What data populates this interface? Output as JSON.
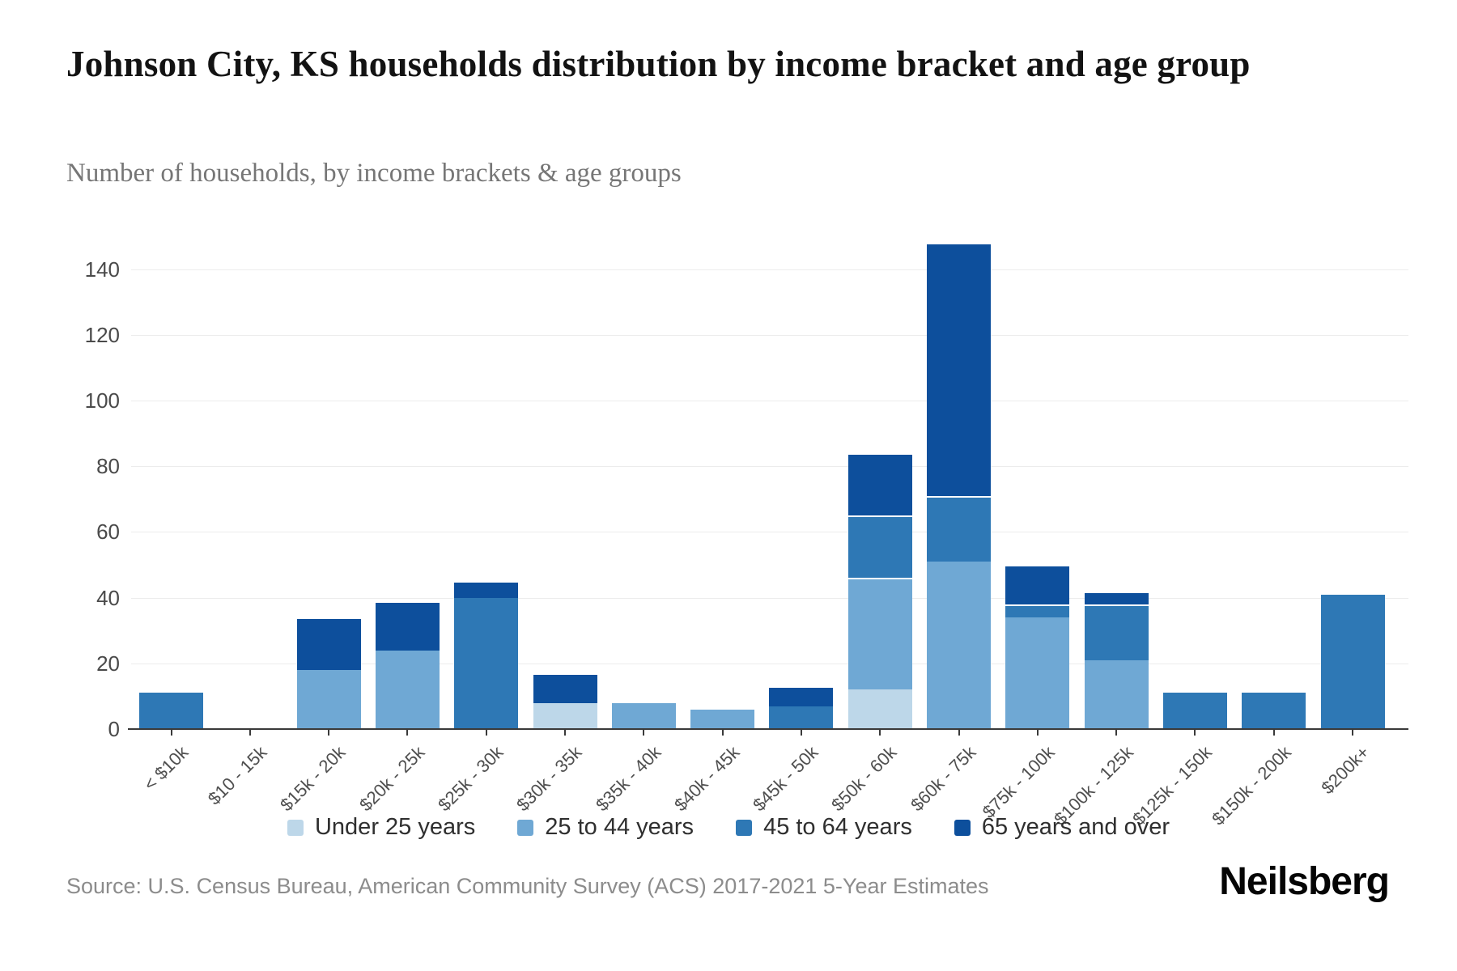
{
  "page": {
    "title": "Johnson City, KS households distribution by income bracket and age group",
    "subtitle": "Number of households, by income brackets & age groups",
    "source": "Source: U.S. Census Bureau, American Community Survey (ACS) 2017-2021 5-Year Estimates",
    "logo": "Neilsberg"
  },
  "chart_data": {
    "type": "bar",
    "stacked": true,
    "title": "Johnson City, KS households distribution by income bracket and age group",
    "subtitle": "Number of households, by income brackets & age groups",
    "xlabel": "",
    "ylabel": "Number of households",
    "categories": [
      "< $10k",
      "$10 - 15k",
      "$15k - 20k",
      "$20k - 25k",
      "$25k - 30k",
      "$30k - 35k",
      "$35k - 40k",
      "$40k - 45k",
      "$45k - 50k",
      "$50k - 60k",
      "$60k - 75k",
      "$75k - 100k",
      "$100k - 125k",
      "$125k - 150k",
      "$150k - 200k",
      "$200k+"
    ],
    "series": [
      {
        "name": "Under 25 years",
        "color": "#bdd7e9",
        "values": [
          0,
          0,
          0,
          0,
          0,
          8,
          0,
          0,
          0,
          12,
          0,
          0,
          0,
          0,
          0,
          0
        ]
      },
      {
        "name": "25 to 44 years",
        "color": "#6fa8d4",
        "values": [
          0,
          0,
          18,
          24,
          0,
          0,
          8,
          6,
          0,
          34,
          51,
          34,
          21,
          0,
          0,
          0
        ]
      },
      {
        "name": "45 to 64 years",
        "color": "#2e78b5",
        "values": [
          11,
          0,
          0,
          0,
          40,
          0,
          0,
          0,
          7,
          19,
          20,
          4,
          17,
          11,
          11,
          41
        ]
      },
      {
        "name": "65 years and over",
        "color": "#0d4f9c",
        "values": [
          0,
          0,
          16,
          15,
          5,
          9,
          0,
          0,
          6,
          19,
          77,
          12,
          4,
          0,
          0,
          0
        ]
      }
    ],
    "totals": [
      11,
      0,
      34,
      39,
      45,
      17,
      8,
      6,
      13,
      84,
      148,
      50,
      42,
      11,
      11,
      41
    ],
    "yticks": [
      0,
      20,
      40,
      60,
      80,
      100,
      120,
      140
    ],
    "ylim": [
      0,
      148
    ],
    "grid": "horizontal",
    "legend_position": "bottom"
  }
}
